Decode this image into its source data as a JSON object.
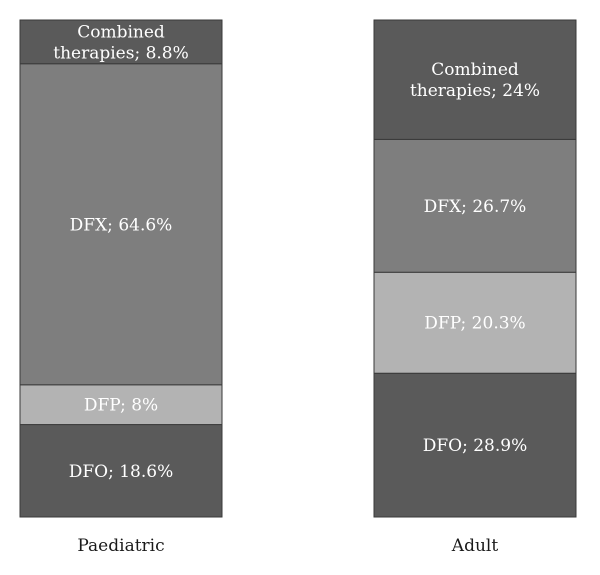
{
  "chart_data": {
    "type": "bar",
    "stacked": true,
    "categories": [
      "Paediatric",
      "Adult"
    ],
    "segment_order_bottom_to_top": [
      "DFO",
      "DFP",
      "DFX",
      "Combined therapies"
    ],
    "series": [
      {
        "name": "DFO",
        "values": [
          18.6,
          28.9
        ],
        "labels": [
          "DFO; 18.6%",
          "DFO; 28.9%"
        ],
        "color": "#5a5a5a"
      },
      {
        "name": "DFP",
        "values": [
          8,
          20.3
        ],
        "labels": [
          "DFP; 8%",
          "DFP; 20.3%"
        ],
        "color": "#b3b3b3"
      },
      {
        "name": "DFX",
        "values": [
          64.6,
          26.7
        ],
        "labels": [
          "DFX; 64.6%",
          "DFX; 26.7%"
        ],
        "color": "#7e7e7e"
      },
      {
        "name": "Combined therapies",
        "values": [
          8.8,
          24
        ],
        "labels": [
          "Combined therapies; 8.8%",
          "Combined therapies; 24%"
        ],
        "color": "#5a5a5a"
      }
    ],
    "label_lines": [
      [
        [
          "DFO; 18.6%"
        ],
        [
          "DFP; 8%"
        ],
        [
          "DFX; 64.6%"
        ],
        [
          "Combined",
          "therapies; 8.8%"
        ]
      ],
      [
        [
          "DFO; 28.9%"
        ],
        [
          "DFP; 20.3%"
        ],
        [
          "DFX; 26.7%"
        ],
        [
          "Combined",
          "therapies; 24%"
        ]
      ]
    ],
    "ylim": [
      0,
      100
    ],
    "title": "",
    "xlabel": "",
    "ylabel": "",
    "legend": "none",
    "grid": false
  }
}
